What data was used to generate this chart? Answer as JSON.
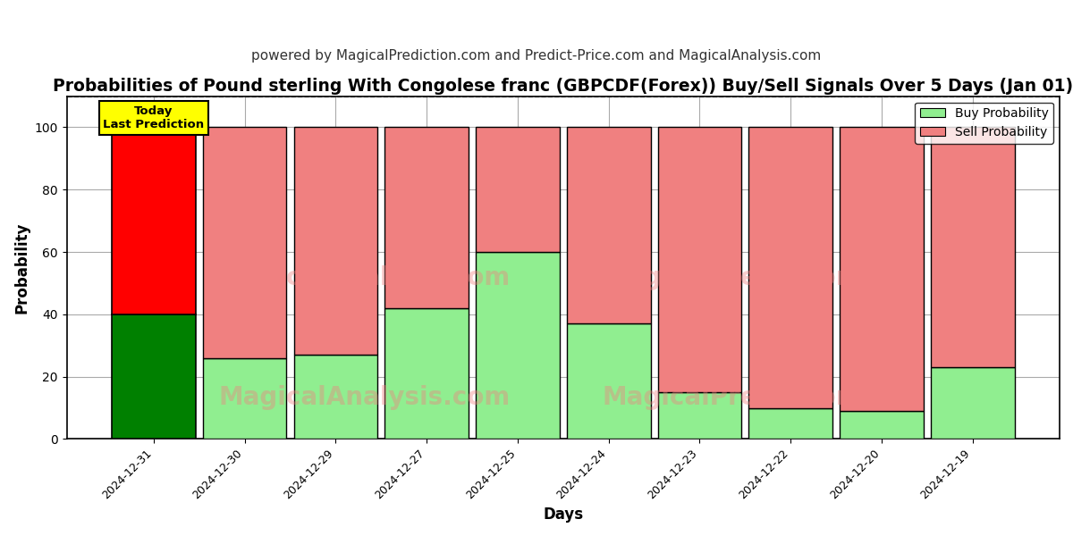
{
  "title": "Probabilities of Pound sterling With Congolese franc (GBPCDF(Forex)) Buy/Sell Signals Over 5 Days (Jan 01)",
  "subtitle": "powered by MagicalPrediction.com and Predict-Price.com and MagicalAnalysis.com",
  "xlabel": "Days",
  "ylabel": "Probability",
  "dates": [
    "2024-12-31",
    "2024-12-30",
    "2024-12-29",
    "2024-12-27",
    "2024-12-25",
    "2024-12-24",
    "2024-12-23",
    "2024-12-22",
    "2024-12-20",
    "2024-12-19"
  ],
  "buy_values": [
    40,
    26,
    27,
    42,
    60,
    37,
    15,
    10,
    9,
    23
  ],
  "sell_values": [
    60,
    74,
    73,
    58,
    40,
    63,
    85,
    90,
    91,
    77
  ],
  "today_buy_color": "#008000",
  "today_sell_color": "#FF0000",
  "buy_color": "#90EE90",
  "sell_color": "#F08080",
  "today_label": "Today\nLast Prediction",
  "today_label_bg": "#FFFF00",
  "legend_buy_label": "Buy Probability",
  "legend_sell_label": "Sell Probability",
  "ylim": [
    0,
    110
  ],
  "watermark_left": "MagicalAnalysis.com",
  "watermark_right": "MagicalPrediction.com",
  "bar_edge_color": "#000000",
  "background_color": "#FFFFFF",
  "grid_color": "#AAAAAA",
  "title_fontsize": 13.5,
  "subtitle_fontsize": 11,
  "label_fontsize": 12,
  "bar_width": 0.92
}
